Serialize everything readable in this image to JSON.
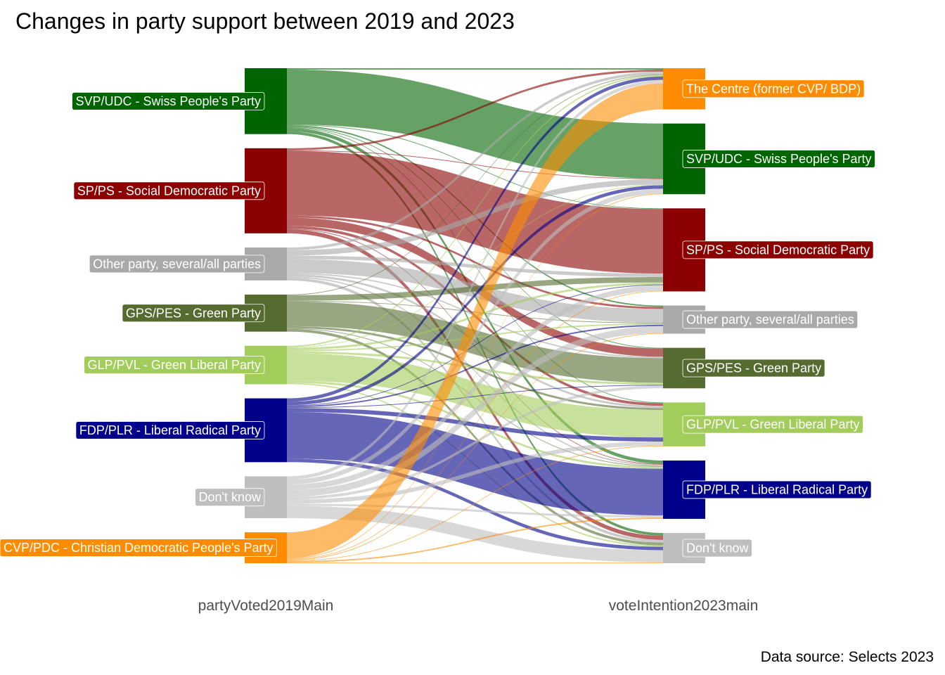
{
  "chart_data": {
    "type": "sankey",
    "title": "Changes in party support between 2019 and 2023",
    "caption": "Data source: Selects 2023",
    "axes": [
      "partyVoted2019Main",
      "voteIntention2023main"
    ],
    "nodes_2019": [
      {
        "id": "SVP",
        "label": "SVP/UDC - Swiss People's Party",
        "color": "#006400",
        "value": 96
      },
      {
        "id": "SP",
        "label": "SP/PS - Social Democratic Party",
        "color": "#8B0000",
        "value": 124
      },
      {
        "id": "OTH",
        "label": "Other party, several/all parties",
        "color": "#A9A9A9",
        "value": 48
      },
      {
        "id": "GPS",
        "label": "GPS/PES - Green Party",
        "color": "#556B2F",
        "value": 54
      },
      {
        "id": "GLP",
        "label": "GLP/PVL - Green Liberal Party",
        "color": "#A2CD5A",
        "value": 56
      },
      {
        "id": "FDP",
        "label": "FDP/PLR - Liberal Radical Party",
        "color": "#00008B",
        "value": 93
      },
      {
        "id": "DK",
        "label": "Don't know",
        "color": "#BEBEBE",
        "value": 61
      },
      {
        "id": "CVP",
        "label": "CVP/PDC - Christian Democratic People's Party",
        "color": "#FF8C00",
        "value": 45
      }
    ],
    "nodes_2023": [
      {
        "id": "CEN",
        "label": "The Centre (former CVP/ BDP)",
        "color": "#FF8C00"
      },
      {
        "id": "SVP",
        "label": "SVP/UDC - Swiss People's Party",
        "color": "#006400"
      },
      {
        "id": "SP",
        "label": "SP/PS - Social Democratic Party",
        "color": "#8B0000"
      },
      {
        "id": "OTH",
        "label": "Other party, several/all parties",
        "color": "#A9A9A9"
      },
      {
        "id": "GPS",
        "label": "GPS/PES - Green Party",
        "color": "#556B2F"
      },
      {
        "id": "GLP",
        "label": "GLP/PVL - Green Liberal Party",
        "color": "#A2CD5A"
      },
      {
        "id": "FDP",
        "label": "FDP/PLR - Liberal Radical Party",
        "color": "#00008B"
      },
      {
        "id": "DK",
        "label": "Don't know",
        "color": "#BEBEBE"
      }
    ],
    "flows": [
      {
        "from": "SVP",
        "to": "CEN",
        "value": 2
      },
      {
        "from": "SVP",
        "to": "SVP",
        "value": 80
      },
      {
        "from": "SVP",
        "to": "SP",
        "value": 1
      },
      {
        "from": "SVP",
        "to": "OTH",
        "value": 2
      },
      {
        "from": "SVP",
        "to": "GPS",
        "value": 1
      },
      {
        "from": "SVP",
        "to": "GLP",
        "value": 1
      },
      {
        "from": "SVP",
        "to": "FDP",
        "value": 5
      },
      {
        "from": "SVP",
        "to": "DK",
        "value": 4
      },
      {
        "from": "SP",
        "to": "CEN",
        "value": 3
      },
      {
        "from": "SP",
        "to": "SVP",
        "value": 1
      },
      {
        "from": "SP",
        "to": "SP",
        "value": 94
      },
      {
        "from": "SP",
        "to": "OTH",
        "value": 3
      },
      {
        "from": "SP",
        "to": "GPS",
        "value": 12
      },
      {
        "from": "SP",
        "to": "GLP",
        "value": 4
      },
      {
        "from": "SP",
        "to": "FDP",
        "value": 1
      },
      {
        "from": "SP",
        "to": "DK",
        "value": 6
      },
      {
        "from": "OTH",
        "to": "CEN",
        "value": 4
      },
      {
        "from": "OTH",
        "to": "SVP",
        "value": 8
      },
      {
        "from": "OTH",
        "to": "SP",
        "value": 5
      },
      {
        "from": "OTH",
        "to": "OTH",
        "value": 20
      },
      {
        "from": "OTH",
        "to": "GPS",
        "value": 2
      },
      {
        "from": "OTH",
        "to": "GLP",
        "value": 3
      },
      {
        "from": "OTH",
        "to": "FDP",
        "value": 2
      },
      {
        "from": "OTH",
        "to": "DK",
        "value": 4
      },
      {
        "from": "GPS",
        "to": "CEN",
        "value": 1
      },
      {
        "from": "GPS",
        "to": "SP",
        "value": 8
      },
      {
        "from": "GPS",
        "to": "OTH",
        "value": 1
      },
      {
        "from": "GPS",
        "to": "GPS",
        "value": 36
      },
      {
        "from": "GPS",
        "to": "GLP",
        "value": 3
      },
      {
        "from": "GPS",
        "to": "FDP",
        "value": 1
      },
      {
        "from": "GPS",
        "to": "DK",
        "value": 4
      },
      {
        "from": "GLP",
        "to": "CEN",
        "value": 2
      },
      {
        "from": "GLP",
        "to": "SVP",
        "value": 1
      },
      {
        "from": "GLP",
        "to": "SP",
        "value": 3
      },
      {
        "from": "GLP",
        "to": "OTH",
        "value": 2
      },
      {
        "from": "GLP",
        "to": "GPS",
        "value": 3
      },
      {
        "from": "GLP",
        "to": "GLP",
        "value": 40
      },
      {
        "from": "GLP",
        "to": "FDP",
        "value": 3
      },
      {
        "from": "GLP",
        "to": "DK",
        "value": 2
      },
      {
        "from": "FDP",
        "to": "CEN",
        "value": 5
      },
      {
        "from": "FDP",
        "to": "SVP",
        "value": 5
      },
      {
        "from": "FDP",
        "to": "SP",
        "value": 1
      },
      {
        "from": "FDP",
        "to": "OTH",
        "value": 2
      },
      {
        "from": "FDP",
        "to": "GPS",
        "value": 1
      },
      {
        "from": "FDP",
        "to": "GLP",
        "value": 6
      },
      {
        "from": "FDP",
        "to": "FDP",
        "value": 68
      },
      {
        "from": "FDP",
        "to": "DK",
        "value": 5
      },
      {
        "from": "DK",
        "to": "CEN",
        "value": 5
      },
      {
        "from": "DK",
        "to": "SVP",
        "value": 7
      },
      {
        "from": "DK",
        "to": "SP",
        "value": 8
      },
      {
        "from": "DK",
        "to": "OTH",
        "value": 10
      },
      {
        "from": "DK",
        "to": "GPS",
        "value": 4
      },
      {
        "from": "DK",
        "to": "GLP",
        "value": 6
      },
      {
        "from": "DK",
        "to": "FDP",
        "value": 3
      },
      {
        "from": "DK",
        "to": "DK",
        "value": 18
      },
      {
        "from": "CVP",
        "to": "CEN",
        "value": 38
      },
      {
        "from": "CVP",
        "to": "SVP",
        "value": 1
      },
      {
        "from": "CVP",
        "to": "SP",
        "value": 1
      },
      {
        "from": "CVP",
        "to": "OTH",
        "value": 1
      },
      {
        "from": "CVP",
        "to": "GLP",
        "value": 1
      },
      {
        "from": "CVP",
        "to": "FDP",
        "value": 2
      },
      {
        "from": "CVP",
        "to": "DK",
        "value": 1
      }
    ]
  }
}
